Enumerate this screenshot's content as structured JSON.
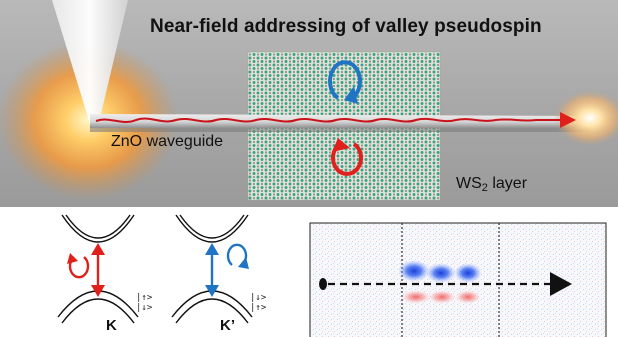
{
  "title": "Near-field addressing of valley pseudospin",
  "labels": {
    "waveguide": "ZnO waveguide",
    "layer_prefix": "WS",
    "layer_sub": "2",
    "layer_suffix": " layer"
  },
  "valleys": [
    {
      "name": "K",
      "spin_top": "|↑>",
      "spin_bottom": "|↓>"
    },
    {
      "name": "K’",
      "spin_top": "|↓>",
      "spin_bottom": "|↑>"
    }
  ],
  "colors": {
    "accent_red": "#e0201b",
    "accent_blue": "#1f74c4",
    "glow": "#f6a44c"
  }
}
